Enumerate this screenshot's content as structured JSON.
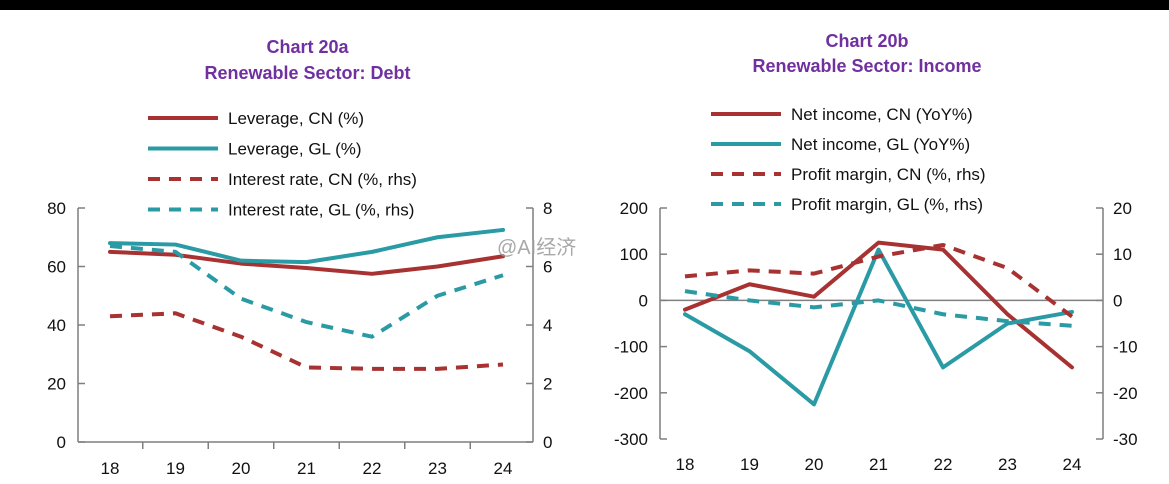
{
  "watermark": "@AI经济",
  "chart_data": [
    {
      "type": "line",
      "title": "Chart 20a",
      "subtitle": "Renewable Sector: Debt",
      "x": [
        "18",
        "19",
        "20",
        "21",
        "22",
        "23",
        "24"
      ],
      "ylim": [
        0,
        80
      ],
      "yticks": [
        0,
        20,
        40,
        60,
        80
      ],
      "y2lim": [
        0,
        8
      ],
      "y2ticks": [
        0,
        2,
        4,
        6,
        8
      ],
      "legend": "top-left",
      "grid": false,
      "colors": {
        "cn": "#a83232",
        "gl": "#2a9aa5"
      },
      "series": [
        {
          "name": "Leverage, CN (%)",
          "axis": "left",
          "style": "solid",
          "color": "#a83232",
          "values": [
            65,
            64,
            61,
            59.5,
            57.5,
            60,
            63.5
          ]
        },
        {
          "name": "Leverage, GL (%)",
          "axis": "left",
          "style": "solid",
          "color": "#2a9aa5",
          "values": [
            68,
            67.5,
            62,
            61.5,
            65,
            70,
            72.5
          ]
        },
        {
          "name": "Interest rate, CN (%, rhs)",
          "axis": "right",
          "style": "dashed",
          "color": "#a83232",
          "values": [
            4.3,
            4.4,
            3.6,
            2.55,
            2.5,
            2.5,
            2.65
          ]
        },
        {
          "name": "Interest rate, GL (%, rhs)",
          "axis": "right",
          "style": "dashed",
          "color": "#2a9aa5",
          "values": [
            6.7,
            6.5,
            4.9,
            4.1,
            3.6,
            5.0,
            5.7
          ]
        }
      ]
    },
    {
      "type": "line",
      "title": "Chart 20b",
      "subtitle": "Renewable Sector: Income",
      "x": [
        "18",
        "19",
        "20",
        "21",
        "22",
        "23",
        "24"
      ],
      "ylim": [
        -300,
        200
      ],
      "yticks": [
        -300,
        -200,
        -100,
        0,
        100,
        200
      ],
      "y2lim": [
        -30,
        20
      ],
      "y2ticks": [
        -30,
        -20,
        -10,
        0,
        10,
        20
      ],
      "legend": "top-left",
      "grid": false,
      "zero_line": true,
      "colors": {
        "cn": "#a83232",
        "gl": "#2a9aa5"
      },
      "series": [
        {
          "name": "Net income, CN (YoY%)",
          "axis": "left",
          "style": "solid",
          "color": "#a83232",
          "values": [
            -20,
            35,
            8,
            125,
            110,
            -30,
            -145
          ]
        },
        {
          "name": "Net income, GL (YoY%)",
          "axis": "left",
          "style": "solid",
          "color": "#2a9aa5",
          "values": [
            -30,
            -110,
            -225,
            110,
            -145,
            -50,
            -25
          ]
        },
        {
          "name": "Profit margin, CN (%, rhs)",
          "axis": "right",
          "style": "dashed",
          "color": "#a83232",
          "values": [
            5.2,
            6.5,
            5.8,
            9.5,
            12,
            7,
            -3.5
          ]
        },
        {
          "name": "Profit margin, GL (%, rhs)",
          "axis": "right",
          "style": "dashed",
          "color": "#2a9aa5",
          "values": [
            2,
            0,
            -1.5,
            0,
            -3,
            -4.5,
            -5.5
          ]
        }
      ]
    }
  ]
}
